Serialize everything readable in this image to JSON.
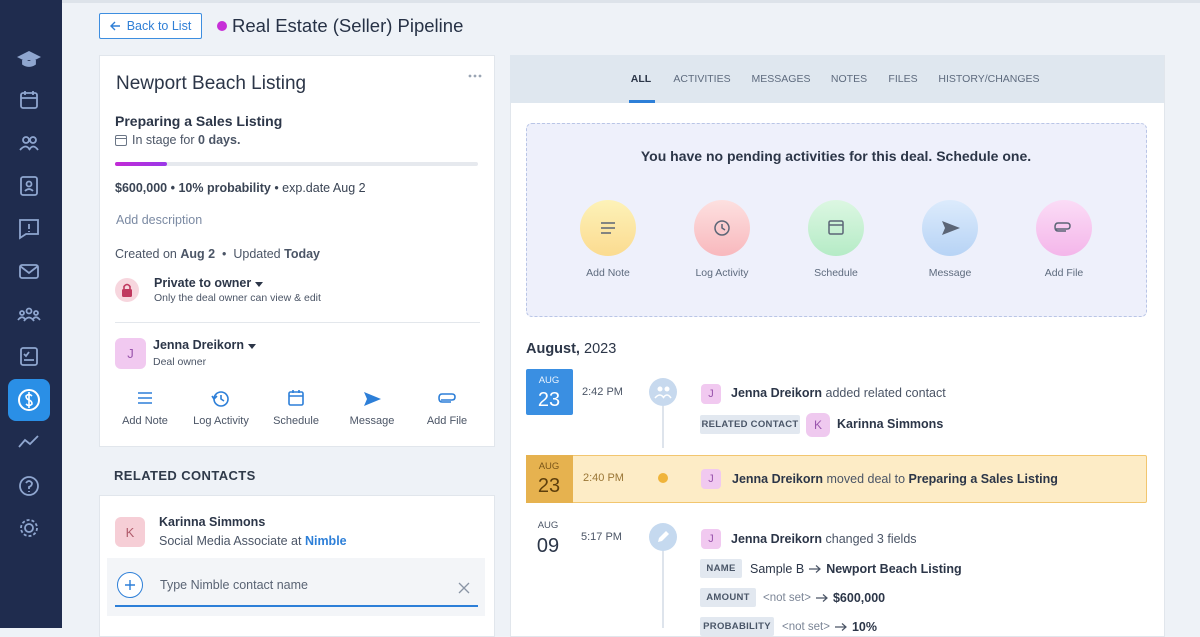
{
  "header": {
    "back": "Back to List",
    "title": "Real Estate (Seller) Pipeline"
  },
  "deal": {
    "name": "Newport Beach Listing",
    "stage": "Preparing a Sales Listing",
    "stage_prefix": "In stage for",
    "stage_days": "0 days.",
    "summary_bold": "$600,000 • 10% probability",
    "summary_rest": "• exp.date Aug 2",
    "add_description": "Add description",
    "created_label": "Created on",
    "created": "Aug 2",
    "separator": "•",
    "updated_label": "Updated",
    "updated": "Today",
    "privacy": "Private to owner",
    "privacy_note": "Only the deal owner can view & edit",
    "owner": {
      "initial": "J",
      "name": "Jenna Dreikorn",
      "role": "Deal owner"
    },
    "actions": [
      "Add Note",
      "Log Activity",
      "Schedule",
      "Message",
      "Add File"
    ]
  },
  "related_contacts": {
    "heading": "RELATED CONTACTS",
    "contacts": [
      {
        "initial": "K",
        "name": "Karinna Simmons",
        "title": "Social Media Associate at",
        "company": "Nimble"
      }
    ],
    "placeholder": "Type Nimble contact name"
  },
  "tabs": [
    "ALL",
    "ACTIVITIES",
    "MESSAGES",
    "NOTES",
    "FILES",
    "HISTORY/CHANGES"
  ],
  "activities": {
    "empty": "You have no pending activities for this deal. Schedule one.",
    "buttons": [
      "Add Note",
      "Log Activity",
      "Schedule",
      "Message",
      "Add File"
    ]
  },
  "timeline": {
    "month": "August,",
    "year": "2023",
    "entries": [
      {
        "month": "AUG",
        "day": "23",
        "time": "2:42 PM",
        "initial": "J",
        "user": "Jenna Dreikorn",
        "action": "added related contact",
        "tag": "RELATED CONTACT",
        "contact_initial": "K",
        "contact": "Karinna Simmons"
      },
      {
        "month": "AUG",
        "day": "23",
        "time": "2:40 PM",
        "initial": "J",
        "user": "Jenna Dreikorn",
        "action": "moved deal to",
        "target": "Preparing a Sales Listing"
      },
      {
        "month": "AUG",
        "day": "09",
        "time": "5:17 PM",
        "initial": "J",
        "user": "Jenna Dreikorn",
        "action": "changed 3 fields",
        "fields": [
          {
            "label": "NAME",
            "from": "Sample B",
            "to": "Newport Beach Listing"
          },
          {
            "label": "AMOUNT",
            "from": "<not set>",
            "to": "$600,000"
          },
          {
            "label": "PROBABILITY",
            "from": "<not set>",
            "to": "10%"
          }
        ]
      }
    ]
  }
}
